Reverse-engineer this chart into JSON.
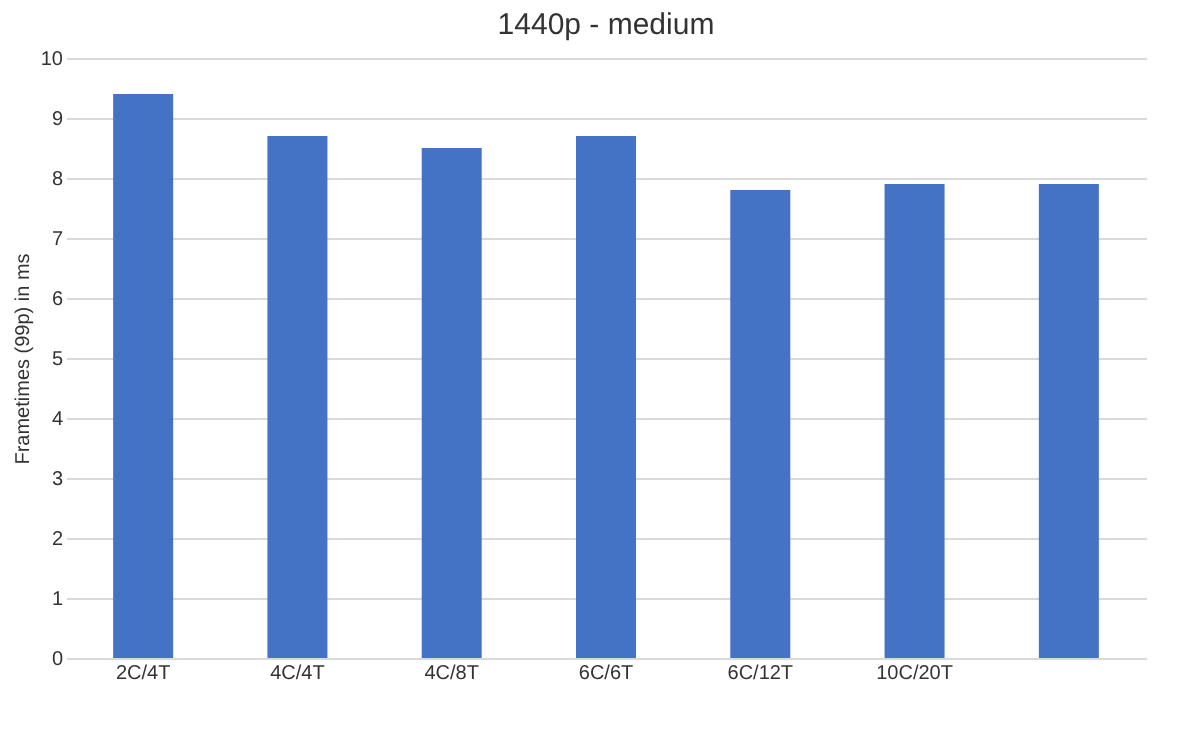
{
  "chart_data": {
    "type": "bar",
    "title": "1440p - medium",
    "ylabel": "Frametimes (99p) in ms",
    "categories": [
      "2C/4T",
      "4C/4T",
      "4C/8T",
      "6C/6T",
      "6C/12T",
      "10C/20T",
      null
    ],
    "values": [
      9.4,
      8.7,
      8.5,
      8.7,
      7.8,
      7.9,
      7.9
    ],
    "color": "#4472c4",
    "ylim": [
      0,
      10
    ],
    "yticks": [
      0,
      1,
      2,
      3,
      4,
      5,
      6,
      7,
      8,
      9,
      10
    ],
    "grid": "y"
  }
}
